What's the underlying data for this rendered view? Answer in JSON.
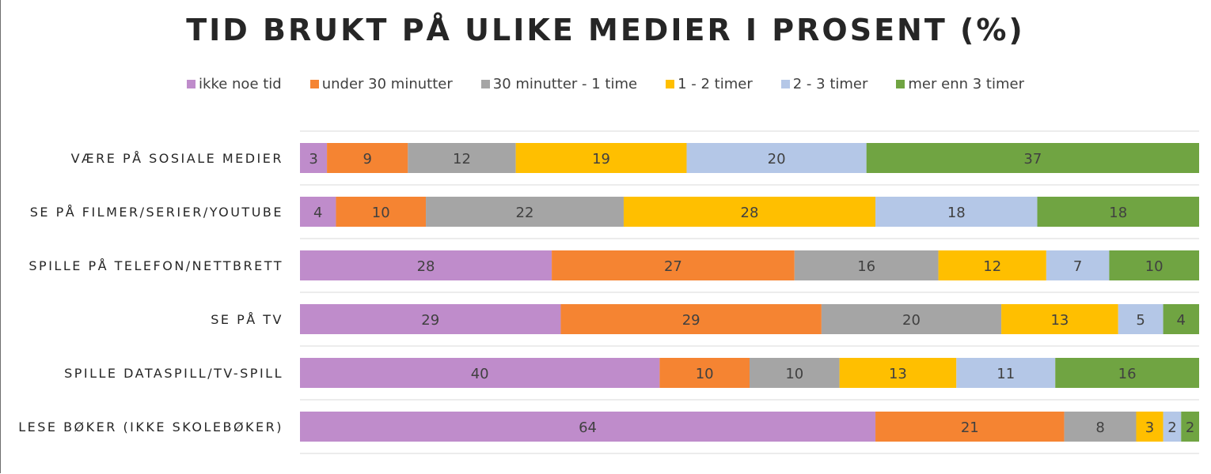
{
  "chart_data": {
    "type": "bar",
    "orientation": "horizontal",
    "stacked": true,
    "title": "TID BRUKT PÅ ULIKE MEDIER I PROSENT (%)",
    "legend_position": "top",
    "grid": true,
    "xlim": [
      0,
      100
    ],
    "categories": [
      "VÆRE PÅ SOSIALE MEDIER",
      "SE PÅ FILMER/SERIER/YOUTUBE",
      "SPILLE PÅ TELEFON/NETTBRETT",
      "SE PÅ TV",
      "SPILLE DATASPILL/TV-SPILL",
      "LESE BØKER (IKKE SKOLEBØKER)"
    ],
    "series": [
      {
        "name": "ikke noe tid",
        "color": "#bf8ccb",
        "values": [
          3,
          4,
          28,
          29,
          40,
          64
        ]
      },
      {
        "name": "under 30 minutter",
        "color": "#f58432",
        "values": [
          9,
          10,
          27,
          29,
          10,
          21
        ]
      },
      {
        "name": "30 minutter - 1 time",
        "color": "#a5a5a5",
        "values": [
          12,
          22,
          16,
          20,
          10,
          8
        ]
      },
      {
        "name": "1 - 2 timer",
        "color": "#ffbf00",
        "values": [
          19,
          28,
          12,
          13,
          13,
          3
        ]
      },
      {
        "name": "2 - 3 timer",
        "color": "#b4c7e7",
        "values": [
          20,
          18,
          7,
          5,
          11,
          2
        ]
      },
      {
        "name": "mer enn 3 timer",
        "color": "#70a442",
        "values": [
          37,
          18,
          10,
          4,
          16,
          2
        ]
      }
    ]
  }
}
